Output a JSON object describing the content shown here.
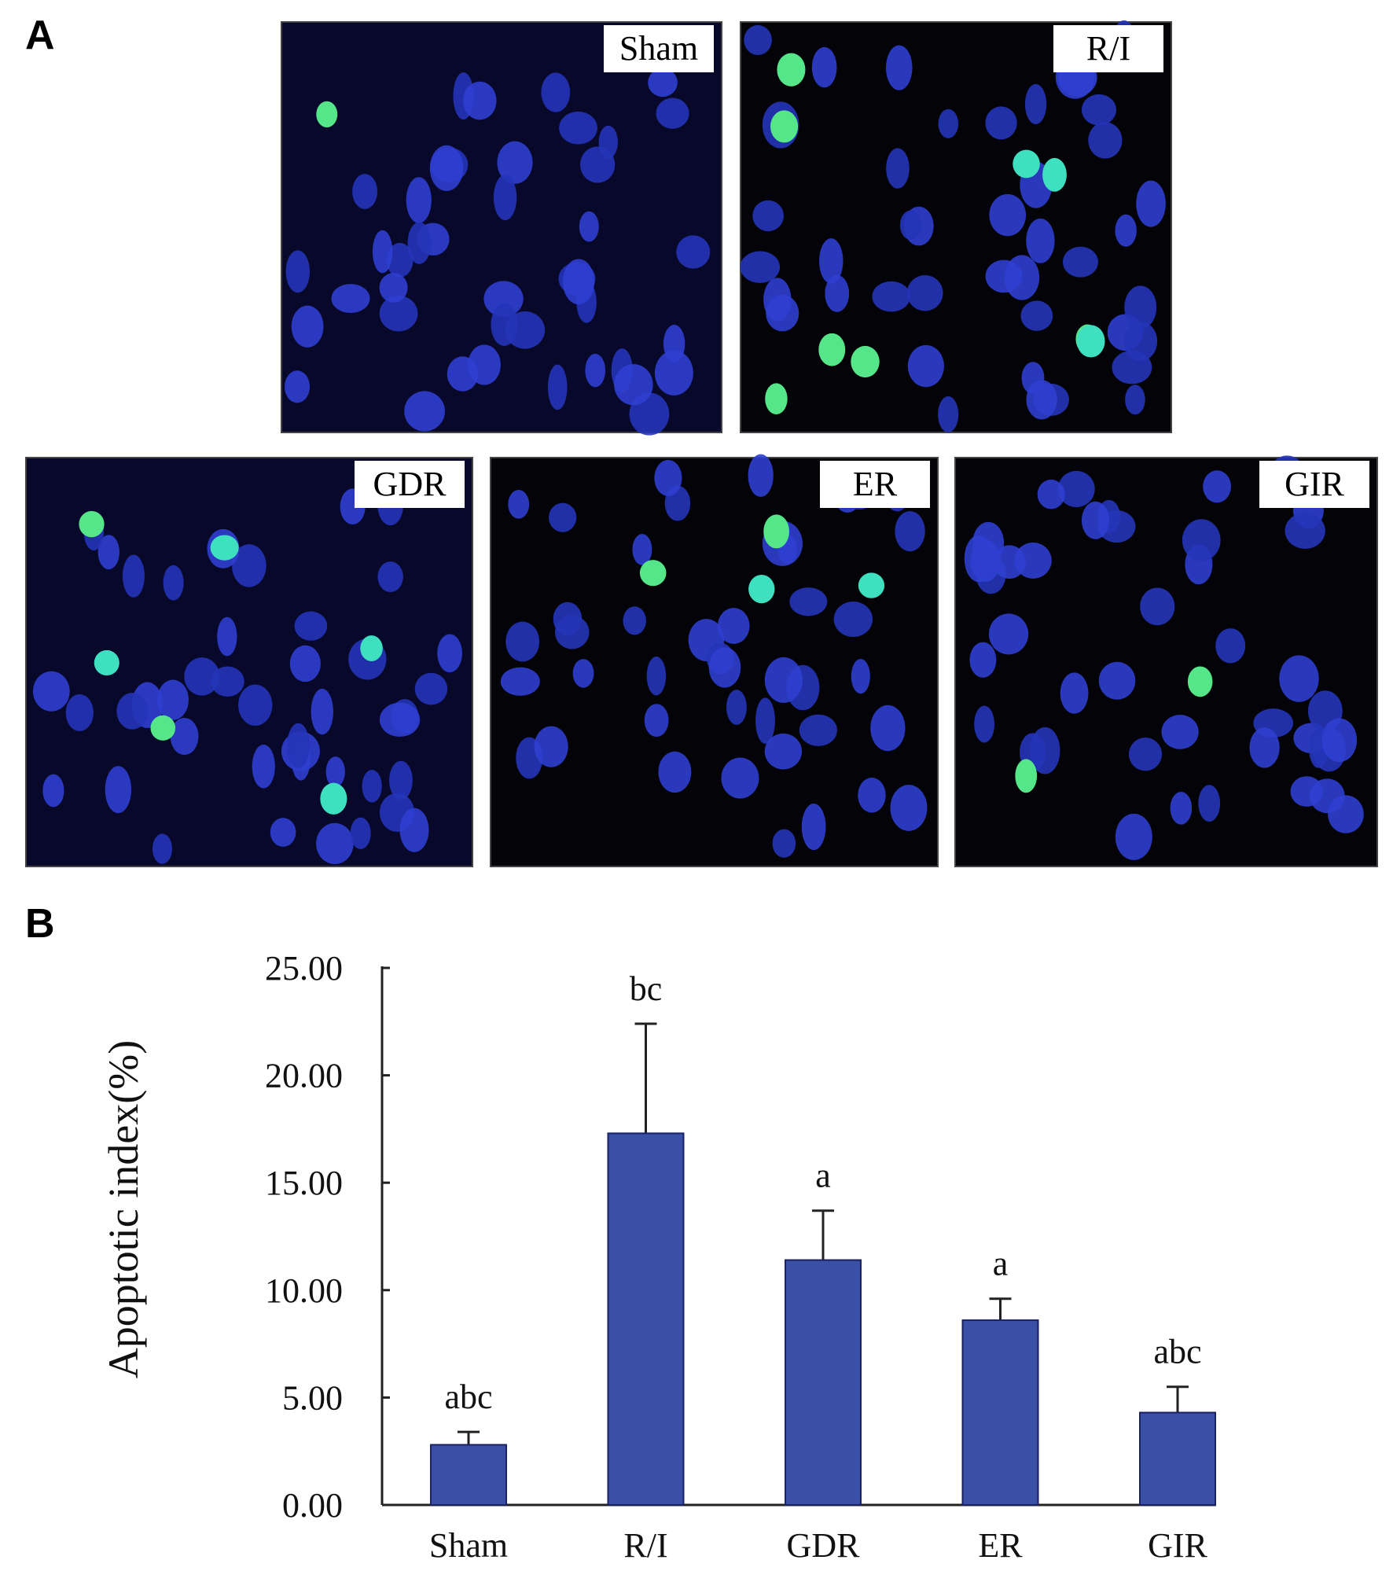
{
  "panel_labels": [
    "A",
    "B"
  ],
  "micrographs": [
    "Sham",
    "R/I",
    "GDR",
    "ER",
    "GIR"
  ],
  "chart_data": {
    "type": "bar",
    "y_label": "Apoptotic index(%)",
    "categories": [
      "Sham",
      "R/I",
      "GDR",
      "ER",
      "GIR"
    ],
    "values": [
      2.8,
      17.3,
      11.4,
      8.6,
      4.3
    ],
    "errors": [
      0.6,
      5.1,
      2.3,
      1.0,
      1.2
    ],
    "annotations": [
      "abc",
      "bc",
      "a",
      "a",
      "abc"
    ],
    "color": "#3a4fa6",
    "ylim": [
      0,
      25
    ],
    "yticks": [
      {
        "value": 0,
        "label": "0.00"
      },
      {
        "value": 5,
        "label": "5.00"
      },
      {
        "value": 10,
        "label": "10.00"
      },
      {
        "value": 15,
        "label": "15.00"
      },
      {
        "value": 20,
        "label": "20.00"
      },
      {
        "value": 25,
        "label": "25.00"
      }
    ]
  }
}
